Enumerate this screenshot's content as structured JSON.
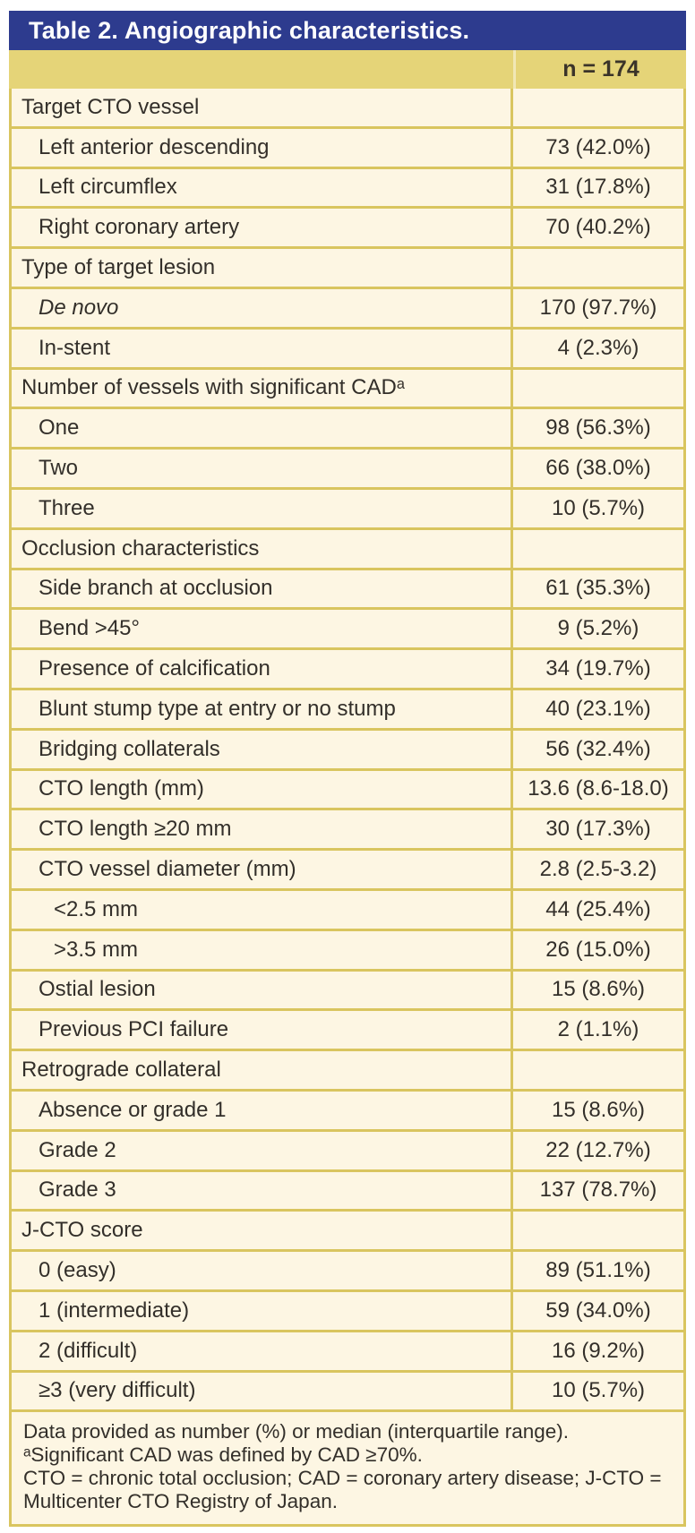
{
  "colors": {
    "blue": "#2d3b8e",
    "band": "#e5d478",
    "border": "#d9c55f",
    "cream": "#fdf6e3",
    "ink": "#332f2a",
    "band_ink": "#3b3429"
  },
  "table": {
    "title": "Table 2. Angiographic characteristics.",
    "column_header": "n = 174",
    "rows": [
      {
        "label": "Target CTO vessel",
        "value": "",
        "type": "category"
      },
      {
        "label": "Left anterior descending",
        "value": "73 (42.0%)",
        "type": "item"
      },
      {
        "label": "Left circumflex",
        "value": "31 (17.8%)",
        "type": "item"
      },
      {
        "label": "Right coronary artery",
        "value": "70 (40.2%)",
        "type": "item"
      },
      {
        "label": "Type of target lesion",
        "value": "",
        "type": "category"
      },
      {
        "label": "De novo",
        "value": "170 (97.7%)",
        "type": "item",
        "italic": true
      },
      {
        "label": "In-stent",
        "value": "4 (2.3%)",
        "type": "item"
      },
      {
        "label": "Number of vessels with significant CADᵃ",
        "value": "",
        "type": "category"
      },
      {
        "label": "One",
        "value": "98 (56.3%)",
        "type": "item"
      },
      {
        "label": "Two",
        "value": "66 (38.0%)",
        "type": "item"
      },
      {
        "label": "Three",
        "value": "10 (5.7%)",
        "type": "item"
      },
      {
        "label": "Occlusion characteristics",
        "value": "",
        "type": "category"
      },
      {
        "label": "Side branch at occlusion",
        "value": "61 (35.3%)",
        "type": "item"
      },
      {
        "label": "Bend >45°",
        "value": "9 (5.2%)",
        "type": "item"
      },
      {
        "label": "Presence of calcification",
        "value": "34 (19.7%)",
        "type": "item"
      },
      {
        "label": "Blunt stump type at entry or no stump",
        "value": "40 (23.1%)",
        "type": "item"
      },
      {
        "label": "Bridging collaterals",
        "value": "56 (32.4%)",
        "type": "item"
      },
      {
        "label": "CTO length (mm)",
        "value": "13.6 (8.6-18.0)",
        "type": "item"
      },
      {
        "label": "CTO length ≥20 mm",
        "value": "30 (17.3%)",
        "type": "item"
      },
      {
        "label": "CTO vessel diameter (mm)",
        "value": "2.8 (2.5-3.2)",
        "type": "item"
      },
      {
        "label": "<2.5 mm",
        "value": "44 (25.4%)",
        "type": "item2"
      },
      {
        "label": ">3.5 mm",
        "value": "26 (15.0%)",
        "type": "item2"
      },
      {
        "label": "Ostial lesion",
        "value": "15 (8.6%)",
        "type": "item"
      },
      {
        "label": "Previous PCI failure",
        "value": "2 (1.1%)",
        "type": "item"
      },
      {
        "label": "Retrograde collateral",
        "value": "",
        "type": "category"
      },
      {
        "label": "Absence or grade 1",
        "value": "15 (8.6%)",
        "type": "item"
      },
      {
        "label": "Grade 2",
        "value": "22 (12.7%)",
        "type": "item"
      },
      {
        "label": "Grade 3",
        "value": "137 (78.7%)",
        "type": "item"
      },
      {
        "label": "J-CTO score",
        "value": "",
        "type": "category"
      },
      {
        "label": "0 (easy)",
        "value": "89 (51.1%)",
        "type": "item"
      },
      {
        "label": "1 (intermediate)",
        "value": "59 (34.0%)",
        "type": "item"
      },
      {
        "label": "2 (difficult)",
        "value": "16 (9.2%)",
        "type": "item"
      },
      {
        "label": "≥3 (very difficult)",
        "value": "10 (5.7%)",
        "type": "item"
      }
    ],
    "footnotes": [
      "Data provided as number (%) or median (interquartile range).",
      "ᵃSignificant CAD was defined by CAD ≥70%.",
      "CTO = chronic total occlusion; CAD = coronary artery disease; J-CTO = Multicenter CTO Registry of Japan."
    ]
  }
}
